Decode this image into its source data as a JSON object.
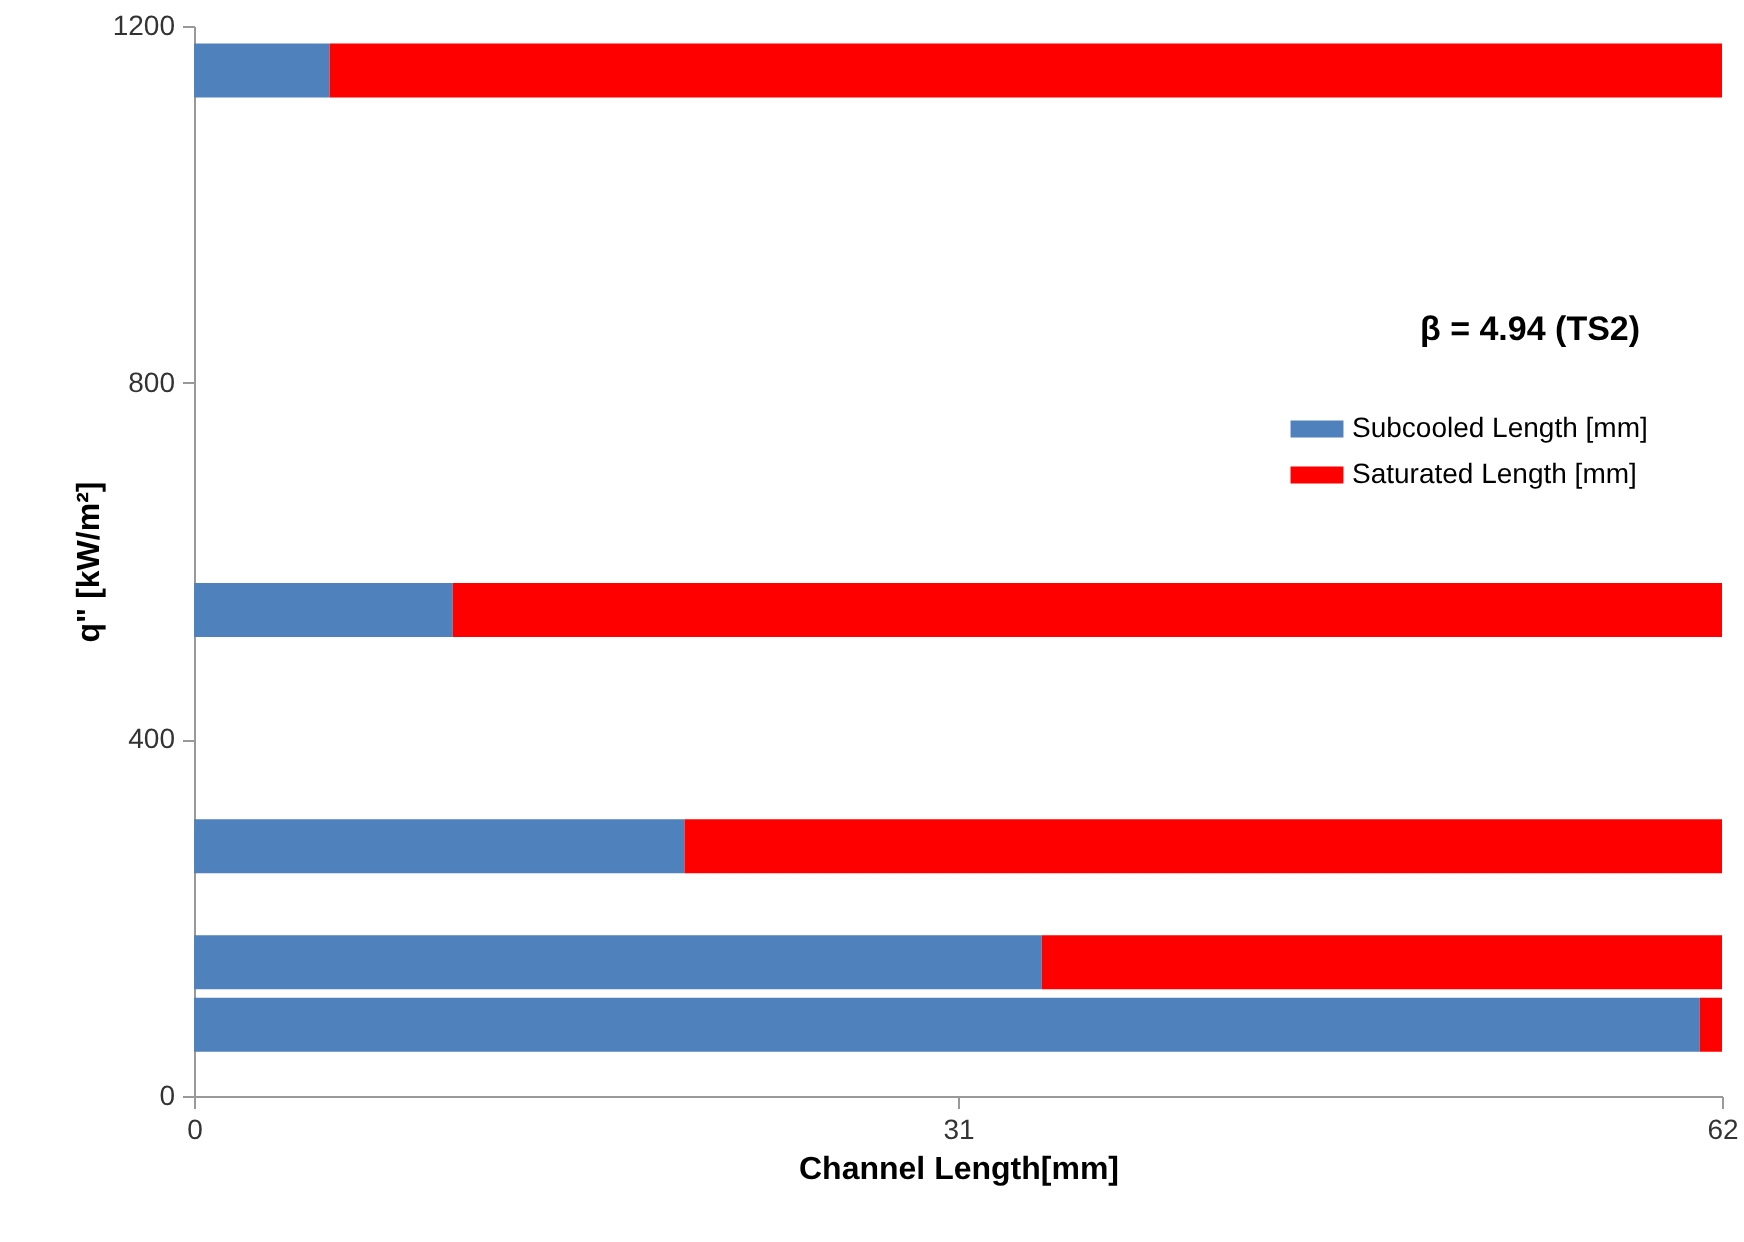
{
  "chart_data": {
    "type": "bar",
    "orientation": "horizontal",
    "stacked": true,
    "x": [
      80,
      150,
      280,
      545,
      1150
    ],
    "series": [
      {
        "name": "Subcooled Length [mm]",
        "color": "#4f81bd",
        "values": [
          61.1,
          34.4,
          19.9,
          10.5,
          5.5
        ]
      },
      {
        "name": "Saturated Length [mm]",
        "color": "#ff0000",
        "values": [
          0.9,
          27.6,
          42.1,
          51.5,
          56.5
        ]
      }
    ],
    "xlabel": "Channel Length[mm]",
    "ylabel": "q\" [kW/m²]",
    "xlim": [
      0,
      62
    ],
    "xticks": [
      0,
      31,
      62
    ],
    "ylim": [
      0,
      1200
    ],
    "yticks": [
      0,
      400,
      800,
      1200
    ],
    "annotations": [
      "β = 4.94 (TS2)"
    ],
    "legend": "right",
    "grid": false
  }
}
